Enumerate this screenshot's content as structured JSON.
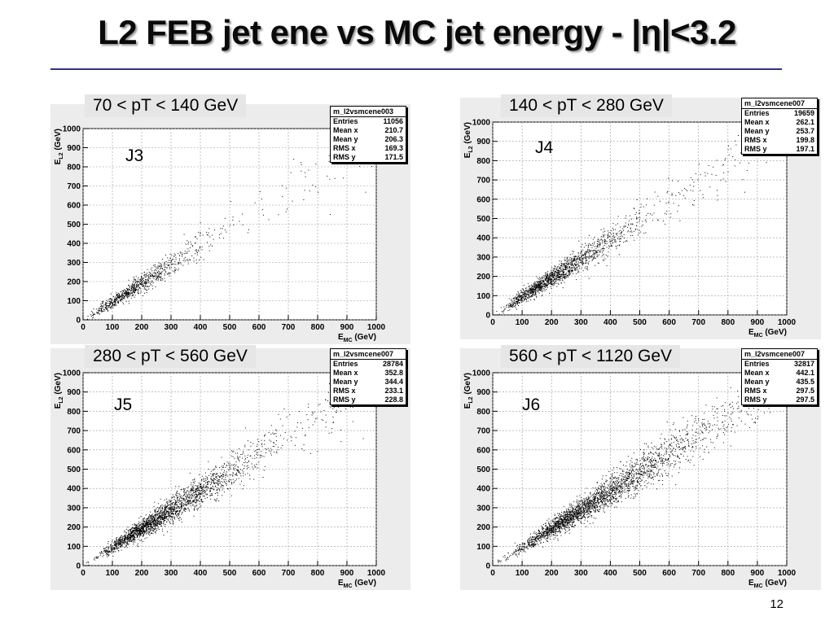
{
  "title": "L2 FEB jet ene vs MC jet energy - |η|<3.2",
  "page_number": "12",
  "colors": {
    "rule": "#33337a",
    "panel_bg": "#ececec",
    "points": "#000000"
  },
  "chart_data": [
    {
      "type": "scatter",
      "pt_label": "70 < pT < 140 GeV",
      "tag": "J3",
      "histogram_name": "m_l2vsmcene003",
      "stats": {
        "entries": "11056",
        "mean_x": "210.7",
        "mean_y": "206.3",
        "rms_x": "169.3",
        "rms_y": "171.5"
      },
      "xlabel": "E_MC (GeV)",
      "ylabel": "E_L2 (GeV)",
      "xlim": [
        0,
        1000
      ],
      "ylim": [
        0,
        1000
      ],
      "xticks": [
        0,
        100,
        200,
        300,
        400,
        500,
        600,
        700,
        800,
        900,
        1000
      ],
      "yticks": [
        0,
        100,
        200,
        300,
        400,
        500,
        600,
        700,
        800,
        900,
        1000
      ],
      "grid": true
    },
    {
      "type": "scatter",
      "pt_label": "140 < pT < 280 GeV",
      "tag": "J4",
      "histogram_name": "m_l2vsmcene007",
      "stats": {
        "entries": "19659",
        "mean_x": "262.1",
        "mean_y": "253.7",
        "rms_x": "199.8",
        "rms_y": "197.1"
      },
      "xlabel": "E_MC (GeV)",
      "ylabel": "E_L2 (GeV)",
      "xlim": [
        0,
        1000
      ],
      "ylim": [
        0,
        1000
      ],
      "xticks": [
        0,
        100,
        200,
        300,
        400,
        500,
        600,
        700,
        800,
        900,
        1000
      ],
      "yticks": [
        0,
        100,
        200,
        300,
        400,
        500,
        600,
        700,
        800,
        900,
        1000
      ],
      "grid": true
    },
    {
      "type": "scatter",
      "pt_label": "280 < pT < 560 GeV",
      "tag": "J5",
      "histogram_name": "m_l2vsmcene007",
      "stats": {
        "entries": "28784",
        "mean_x": "352.8",
        "mean_y": "344.4",
        "rms_x": "233.1",
        "rms_y": "228.8"
      },
      "xlabel": "E_MC (GeV)",
      "ylabel": "E_L2 (GeV)",
      "xlim": [
        0,
        1000
      ],
      "ylim": [
        0,
        1000
      ],
      "xticks": [
        0,
        100,
        200,
        300,
        400,
        500,
        600,
        700,
        800,
        900,
        1000
      ],
      "yticks": [
        0,
        100,
        200,
        300,
        400,
        500,
        600,
        700,
        800,
        900,
        1000
      ],
      "grid": true
    },
    {
      "type": "scatter",
      "pt_label": "560 < pT < 1120 GeV",
      "tag": "J6",
      "histogram_name": "m_l2vsmcene007",
      "stats": {
        "entries": "32817",
        "mean_x": "442.1",
        "mean_y": "435.5",
        "rms_x": "297.5",
        "rms_y": "297.5"
      },
      "xlabel": "E_MC (GeV)",
      "ylabel": "E_L2 (GeV)",
      "xlim": [
        0,
        1000
      ],
      "ylim": [
        0,
        1000
      ],
      "xticks": [
        0,
        100,
        200,
        300,
        400,
        500,
        600,
        700,
        800,
        900,
        1000
      ],
      "yticks": [
        0,
        100,
        200,
        300,
        400,
        500,
        600,
        700,
        800,
        900,
        1000
      ],
      "grid": true
    }
  ],
  "stat_labels": {
    "entries": "Entries",
    "mean_x": "Mean x",
    "mean_y": "Mean y",
    "rms_x": "RMS x",
    "rms_y": "RMS y"
  }
}
